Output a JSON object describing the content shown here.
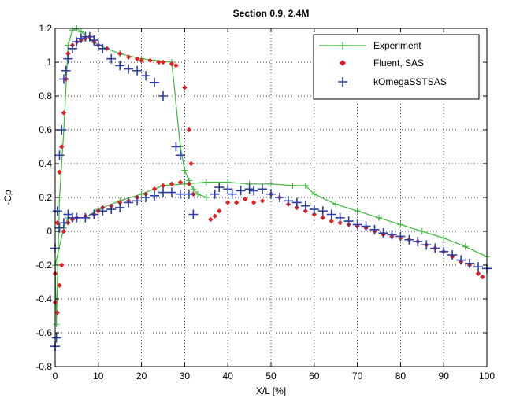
{
  "chart_data": {
    "type": "line",
    "title": "Section 0.9, 2.4M",
    "xlabel": "X/L [%]",
    "ylabel": "-Cp",
    "xlim": [
      0,
      100
    ],
    "ylim": [
      -0.8,
      1.2
    ],
    "x_ticks": [
      0,
      10,
      20,
      30,
      40,
      50,
      60,
      70,
      80,
      90,
      100
    ],
    "y_ticks": [
      -0.8,
      -0.6,
      -0.4,
      -0.2,
      0,
      0.2,
      0.4,
      0.6,
      0.8,
      1,
      1.2
    ],
    "x_tick_labels": [
      "0",
      "10",
      "20",
      "30",
      "40",
      "50",
      "60",
      "70",
      "80",
      "90",
      "100"
    ],
    "y_tick_labels": [
      "-0.8",
      "-0.6",
      "-0.4",
      "-0.2",
      "0",
      "0.2",
      "0.4",
      "0.6",
      "0.8",
      "1",
      "1.2"
    ],
    "grid": true,
    "legend_position": "top-right",
    "series": [
      {
        "name": "Experiment",
        "style": "line+plus",
        "color": "#3cb83c",
        "points": [
          [
            0,
            -0.2
          ],
          [
            0.3,
            -0.55
          ],
          [
            0.6,
            -0.2
          ],
          [
            1,
            0.2
          ],
          [
            2,
            0.6
          ],
          [
            3,
            1.1
          ],
          [
            4,
            1.19
          ],
          [
            5,
            1.2
          ],
          [
            6,
            1.18
          ],
          [
            10,
            1.1
          ],
          [
            15,
            1.05
          ],
          [
            20,
            1.02
          ],
          [
            27,
            1.0
          ],
          [
            29,
            0.5
          ],
          [
            30,
            0.36
          ],
          [
            31,
            0.3
          ],
          [
            32,
            0.25
          ],
          [
            33,
            0.22
          ],
          [
            35,
            0.2
          ]
        ]
      },
      {
        "name": "",
        "style": "line+plus",
        "color": "#3cb83c",
        "points": [
          [
            0,
            -0.2
          ],
          [
            2,
            0.02
          ],
          [
            3,
            0.08
          ],
          [
            4,
            0.08
          ],
          [
            7,
            0.08
          ],
          [
            10,
            0.13
          ],
          [
            15,
            0.18
          ],
          [
            20,
            0.22
          ],
          [
            25,
            0.27
          ],
          [
            30,
            0.28
          ],
          [
            35,
            0.29
          ],
          [
            40,
            0.29
          ],
          [
            45,
            0.28
          ],
          [
            50,
            0.28
          ],
          [
            55,
            0.27
          ],
          [
            58,
            0.27
          ],
          [
            60,
            0.22
          ],
          [
            65,
            0.16
          ],
          [
            70,
            0.12
          ],
          [
            75,
            0.08
          ],
          [
            80,
            0.04
          ],
          [
            85,
            0.0
          ],
          [
            90,
            -0.04
          ],
          [
            95,
            -0.09
          ],
          [
            100,
            -0.15
          ]
        ]
      },
      {
        "name": "Fluent, SAS",
        "style": "diamond",
        "color": "#e02020",
        "points": [
          [
            0,
            -0.25
          ],
          [
            0.5,
            0.05
          ],
          [
            1,
            0.35
          ],
          [
            1.5,
            0.5
          ],
          [
            2,
            0.7
          ],
          [
            2.5,
            0.9
          ],
          [
            3,
            1.05
          ],
          [
            4,
            1.1
          ],
          [
            5,
            1.12
          ],
          [
            6,
            1.13
          ],
          [
            7,
            1.14
          ],
          [
            8,
            1.15
          ],
          [
            9,
            1.12
          ],
          [
            10,
            1.1
          ],
          [
            12,
            1.08
          ],
          [
            15,
            1.05
          ],
          [
            17,
            1.03
          ],
          [
            19,
            1.02
          ],
          [
            20,
            1.01
          ],
          [
            22,
            1.01
          ],
          [
            24,
            1.0
          ],
          [
            25,
            1.0
          ],
          [
            27,
            0.99
          ],
          [
            28,
            0.98
          ],
          [
            30,
            0.85
          ],
          [
            31,
            0.6
          ],
          [
            31.5,
            0.4
          ],
          [
            0,
            -0.42
          ],
          [
            0.5,
            -0.48
          ],
          [
            1,
            -0.32
          ],
          [
            1.5,
            -0.2
          ],
          [
            2,
            0.0
          ],
          [
            3,
            0.05
          ],
          [
            4,
            0.07
          ],
          [
            5,
            0.08
          ],
          [
            7,
            0.09
          ],
          [
            9,
            0.1
          ],
          [
            10,
            0.12
          ],
          [
            11,
            0.14
          ],
          [
            13,
            0.15
          ],
          [
            15,
            0.17
          ],
          [
            17,
            0.18
          ],
          [
            19,
            0.2
          ],
          [
            21,
            0.22
          ],
          [
            23,
            0.25
          ],
          [
            25,
            0.27
          ],
          [
            27,
            0.28
          ],
          [
            29,
            0.29
          ],
          [
            31,
            0.28
          ],
          [
            32,
            0.22
          ],
          [
            36,
            0.07
          ],
          [
            37,
            0.09
          ],
          [
            38,
            0.12
          ],
          [
            40,
            0.17
          ],
          [
            42,
            0.17
          ],
          [
            44,
            0.19
          ],
          [
            46,
            0.17
          ],
          [
            48,
            0.18
          ],
          [
            50,
            0.22
          ],
          [
            52,
            0.2
          ],
          [
            54,
            0.16
          ],
          [
            56,
            0.14
          ],
          [
            58,
            0.12
          ],
          [
            60,
            0.1
          ],
          [
            62,
            0.08
          ],
          [
            64,
            0.06
          ],
          [
            66,
            0.05
          ],
          [
            68,
            0.04
          ],
          [
            70,
            0.03
          ],
          [
            72,
            0.02
          ],
          [
            74,
            0.0
          ],
          [
            76,
            -0.02
          ],
          [
            78,
            -0.03
          ],
          [
            80,
            -0.04
          ],
          [
            82,
            -0.05
          ],
          [
            84,
            -0.06
          ],
          [
            86,
            -0.08
          ],
          [
            88,
            -0.1
          ],
          [
            90,
            -0.12
          ],
          [
            92,
            -0.15
          ],
          [
            94,
            -0.18
          ],
          [
            96,
            -0.2
          ],
          [
            98,
            -0.25
          ],
          [
            99,
            -0.27
          ]
        ]
      },
      {
        "name": "kOmegaSSTSAS",
        "style": "plus",
        "color": "#2a3fa8",
        "points": [
          [
            0,
            -0.68
          ],
          [
            0.3,
            -0.63
          ],
          [
            0.5,
            0.12
          ],
          [
            1,
            0.45
          ],
          [
            1.5,
            0.6
          ],
          [
            2,
            0.9
          ],
          [
            2.5,
            0.95
          ],
          [
            3,
            1.02
          ],
          [
            4,
            1.08
          ],
          [
            5,
            1.12
          ],
          [
            6,
            1.14
          ],
          [
            7,
            1.15
          ],
          [
            8,
            1.15
          ],
          [
            9,
            1.13
          ],
          [
            10,
            1.1
          ],
          [
            11,
            1.08
          ],
          [
            13,
            1.02
          ],
          [
            15,
            0.98
          ],
          [
            17,
            0.96
          ],
          [
            19,
            0.95
          ],
          [
            21,
            0.92
          ],
          [
            23,
            0.88
          ],
          [
            25,
            0.8
          ],
          [
            28,
            0.5
          ],
          [
            29,
            0.45
          ],
          [
            0,
            -0.1
          ],
          [
            1,
            0.02
          ],
          [
            2,
            0.05
          ],
          [
            3,
            0.1
          ],
          [
            4,
            0.08
          ],
          [
            5,
            0.08
          ],
          [
            7,
            0.08
          ],
          [
            9,
            0.1
          ],
          [
            11,
            0.12
          ],
          [
            13,
            0.13
          ],
          [
            15,
            0.14
          ],
          [
            17,
            0.17
          ],
          [
            19,
            0.18
          ],
          [
            21,
            0.2
          ],
          [
            23,
            0.21
          ],
          [
            25,
            0.23
          ],
          [
            27,
            0.23
          ],
          [
            29,
            0.22
          ],
          [
            31,
            0.22
          ],
          [
            32,
            0.1
          ],
          [
            37,
            0.22
          ],
          [
            38,
            0.26
          ],
          [
            40,
            0.25
          ],
          [
            41,
            0.22
          ],
          [
            43,
            0.24
          ],
          [
            45,
            0.25
          ],
          [
            46,
            0.24
          ],
          [
            48,
            0.25
          ],
          [
            50,
            0.22
          ],
          [
            52,
            0.2
          ],
          [
            54,
            0.18
          ],
          [
            56,
            0.17
          ],
          [
            58,
            0.15
          ],
          [
            60,
            0.13
          ],
          [
            62,
            0.12
          ],
          [
            64,
            0.1
          ],
          [
            66,
            0.08
          ],
          [
            68,
            0.06
          ],
          [
            70,
            0.04
          ],
          [
            72,
            0.03
          ],
          [
            74,
            0.01
          ],
          [
            76,
            -0.01
          ],
          [
            78,
            -0.02
          ],
          [
            80,
            -0.03
          ],
          [
            82,
            -0.05
          ],
          [
            84,
            -0.06
          ],
          [
            86,
            -0.08
          ],
          [
            88,
            -0.1
          ],
          [
            90,
            -0.12
          ],
          [
            92,
            -0.14
          ],
          [
            94,
            -0.17
          ],
          [
            96,
            -0.19
          ],
          [
            98,
            -0.21
          ],
          [
            100,
            -0.22
          ]
        ]
      }
    ],
    "legend": [
      "Experiment",
      "Fluent, SAS",
      "kOmegaSSTSAS"
    ]
  }
}
